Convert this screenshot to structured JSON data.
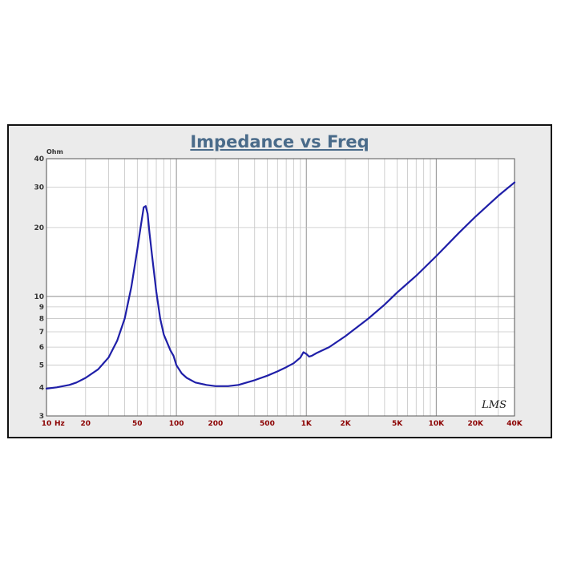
{
  "chart_data": {
    "type": "line",
    "title": "Impedance vs Freq",
    "xlabel": "",
    "ylabel": "",
    "y_unit": "Ohm",
    "x_unit": "Hz",
    "x_scale": "log",
    "y_scale": "log",
    "xlim": [
      10,
      40000
    ],
    "ylim": [
      3,
      40
    ],
    "grid": true,
    "x_ticks": [
      {
        "value": 10,
        "label": "10"
      },
      {
        "value": 20,
        "label": "20"
      },
      {
        "value": 50,
        "label": "50"
      },
      {
        "value": 100,
        "label": "100"
      },
      {
        "value": 200,
        "label": "200"
      },
      {
        "value": 500,
        "label": "500"
      },
      {
        "value": 1000,
        "label": "1K"
      },
      {
        "value": 2000,
        "label": "2K"
      },
      {
        "value": 5000,
        "label": "5K"
      },
      {
        "value": 10000,
        "label": "10K"
      },
      {
        "value": 20000,
        "label": "20K"
      },
      {
        "value": 40000,
        "label": "40K"
      }
    ],
    "y_ticks": [
      {
        "value": 3,
        "label": "3"
      },
      {
        "value": 4,
        "label": "4"
      },
      {
        "value": 5,
        "label": "5"
      },
      {
        "value": 6,
        "label": "6"
      },
      {
        "value": 7,
        "label": "7"
      },
      {
        "value": 8,
        "label": "8"
      },
      {
        "value": 9,
        "label": "9"
      },
      {
        "value": 10,
        "label": "10"
      },
      {
        "value": 20,
        "label": "20"
      },
      {
        "value": 30,
        "label": "30"
      },
      {
        "value": 40,
        "label": "40"
      }
    ],
    "series": [
      {
        "color": "#1f1fa8",
        "x": [
          10,
          12,
          15,
          17,
          20,
          25,
          30,
          35,
          40,
          45,
          50,
          53,
          56,
          58,
          60,
          62,
          65,
          70,
          75,
          80,
          90,
          95,
          100,
          110,
          120,
          140,
          170,
          200,
          250,
          300,
          400,
          500,
          600,
          700,
          800,
          900,
          950,
          1000,
          1050,
          1100,
          1200,
          1500,
          2000,
          3000,
          4000,
          5000,
          7000,
          10000,
          15000,
          20000,
          30000,
          40000
        ],
        "y": [
          3.95,
          4.0,
          4.1,
          4.2,
          4.4,
          4.8,
          5.4,
          6.4,
          8.0,
          11.0,
          16.0,
          20.0,
          24.5,
          24.8,
          23.0,
          19.0,
          15.0,
          10.5,
          8.0,
          6.8,
          5.8,
          5.5,
          5.0,
          4.6,
          4.4,
          4.2,
          4.1,
          4.05,
          4.05,
          4.1,
          4.3,
          4.5,
          4.7,
          4.9,
          5.1,
          5.4,
          5.7,
          5.6,
          5.45,
          5.5,
          5.65,
          6.0,
          6.7,
          8.0,
          9.2,
          10.4,
          12.3,
          15.0,
          19.0,
          22.3,
          27.5,
          31.5
        ]
      }
    ]
  },
  "signature": "LMS"
}
